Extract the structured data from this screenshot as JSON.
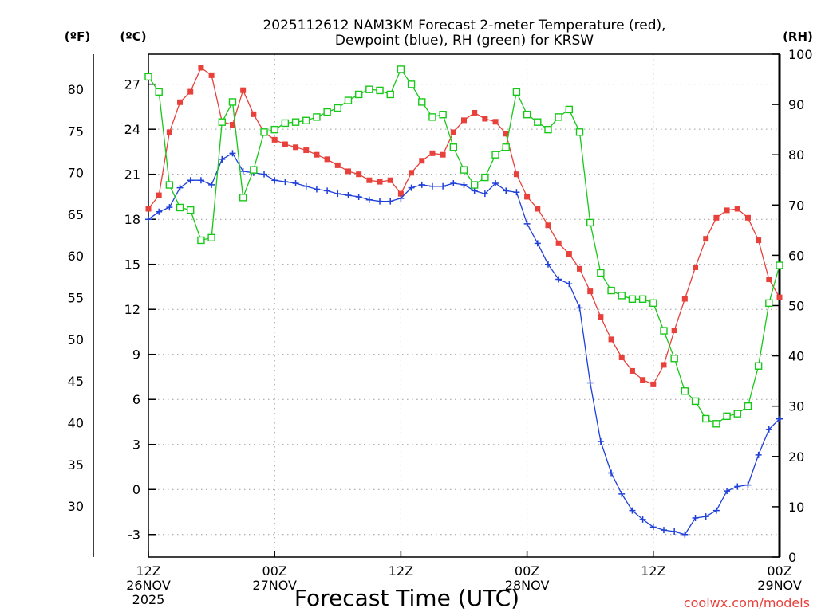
{
  "chart_data": {
    "type": "line",
    "title_line1": "2025112612 NAM3KM Forecast 2-meter Temperature (red),",
    "title_line2": "Dewpoint (blue), RH (green) for KRSW",
    "xlabel": "Forecast Time (UTC)",
    "credit": "coolwx.com/models",
    "unit_labels": {
      "fahrenheit": "(ºF)",
      "celsius": "(ºC)",
      "rh": "(RH)"
    },
    "x_range_hours": [
      0,
      60
    ],
    "celsius_range": [
      -4.5,
      29.0
    ],
    "rh_range": [
      0,
      100
    ],
    "celsius_ticks": [
      "27",
      "24",
      "21",
      "18",
      "15",
      "12",
      "9",
      "6",
      "3",
      "0",
      "-3"
    ],
    "celsius_tick_values": [
      27,
      24,
      21,
      18,
      15,
      12,
      9,
      6,
      3,
      0,
      -3
    ],
    "fahrenheit_ticks": [
      "80",
      "75",
      "70",
      "65",
      "60",
      "55",
      "50",
      "45",
      "40",
      "35",
      "30"
    ],
    "fahrenheit_tick_values": [
      80,
      75,
      70,
      65,
      60,
      55,
      50,
      45,
      40,
      35,
      30
    ],
    "rh_ticks": [
      "100",
      "90",
      "80",
      "70",
      "60",
      "50",
      "40",
      "30",
      "20",
      "10",
      "0"
    ],
    "rh_tick_values": [
      100,
      90,
      80,
      70,
      60,
      50,
      40,
      30,
      20,
      10,
      0
    ],
    "x_ticks": [
      {
        "hour": 0,
        "lines": [
          "12Z",
          "26NOV",
          "2025"
        ]
      },
      {
        "hour": 12,
        "lines": [
          "00Z",
          "27NOV"
        ]
      },
      {
        "hour": 24,
        "lines": [
          "12Z"
        ]
      },
      {
        "hour": 36,
        "lines": [
          "00Z",
          "28NOV"
        ]
      },
      {
        "hour": 48,
        "lines": [
          "12Z"
        ]
      },
      {
        "hour": 60,
        "lines": [
          "00Z",
          "29NOV"
        ]
      }
    ],
    "series": [
      {
        "name": "2-meter Temperature",
        "color": "#e8403a",
        "units": "C",
        "marker": "filled-square",
        "x": [
          0,
          1,
          2,
          3,
          4,
          5,
          6,
          7,
          8,
          9,
          10,
          11,
          12,
          13,
          14,
          15,
          16,
          17,
          18,
          19,
          20,
          21,
          22,
          23,
          24,
          25,
          26,
          27,
          28,
          29,
          30,
          31,
          32,
          33,
          34,
          35,
          36,
          37,
          38,
          39,
          40,
          41,
          42,
          43,
          44,
          45,
          46,
          47,
          48,
          49,
          50,
          51,
          52,
          53,
          54,
          55,
          56,
          57,
          58,
          59,
          60
        ],
        "values": [
          18.7,
          19.6,
          23.8,
          25.8,
          26.5,
          28.1,
          27.6,
          24.5,
          24.3,
          26.6,
          25.0,
          23.8,
          23.3,
          23.0,
          22.8,
          22.6,
          22.3,
          22.0,
          21.6,
          21.2,
          21.0,
          20.6,
          20.5,
          20.6,
          19.7,
          21.1,
          21.9,
          22.4,
          22.3,
          23.8,
          24.6,
          25.1,
          24.7,
          24.5,
          23.7,
          21.0,
          19.5,
          18.7,
          17.6,
          16.4,
          15.7,
          14.7,
          13.2,
          11.5,
          10.0,
          8.8,
          7.9,
          7.3,
          7.0,
          8.3,
          10.6,
          12.7,
          14.8,
          16.7,
          18.1,
          18.6,
          18.7,
          18.1,
          16.6,
          14.0,
          12.8
        ]
      },
      {
        "name": "Dewpoint",
        "color": "#1e3fd8",
        "units": "C",
        "marker": "plus",
        "x": [
          0,
          1,
          2,
          3,
          4,
          5,
          6,
          7,
          8,
          9,
          10,
          11,
          12,
          13,
          14,
          15,
          16,
          17,
          18,
          19,
          20,
          21,
          22,
          23,
          24,
          25,
          26,
          27,
          28,
          29,
          30,
          31,
          32,
          33,
          34,
          35,
          36,
          37,
          38,
          39,
          40,
          41,
          42,
          43,
          44,
          45,
          46,
          47,
          48,
          49,
          50,
          51,
          52,
          53,
          54,
          55,
          56,
          57,
          58,
          59,
          60
        ],
        "values": [
          18.0,
          18.5,
          18.8,
          20.1,
          20.6,
          20.6,
          20.3,
          22.0,
          22.4,
          21.2,
          21.1,
          21.0,
          20.6,
          20.5,
          20.4,
          20.2,
          20.0,
          19.9,
          19.7,
          19.6,
          19.5,
          19.3,
          19.2,
          19.2,
          19.4,
          20.1,
          20.3,
          20.2,
          20.2,
          20.4,
          20.3,
          19.9,
          19.7,
          20.4,
          19.9,
          19.8,
          17.7,
          16.4,
          15.0,
          14.0,
          13.7,
          12.1,
          7.1,
          3.2,
          1.1,
          -0.3,
          -1.4,
          -2.0,
          -2.5,
          -2.7,
          -2.8,
          -3.0,
          -1.9,
          -1.8,
          -1.4,
          -0.1,
          0.2,
          0.3,
          2.3,
          4.0,
          4.7
        ]
      },
      {
        "name": "RH",
        "color": "#18c818",
        "units": "%",
        "marker": "open-square",
        "x": [
          0,
          1,
          2,
          3,
          4,
          5,
          6,
          7,
          8,
          9,
          10,
          11,
          12,
          13,
          14,
          15,
          16,
          17,
          18,
          19,
          20,
          21,
          22,
          23,
          24,
          25,
          26,
          27,
          28,
          29,
          30,
          31,
          32,
          33,
          34,
          35,
          36,
          37,
          38,
          39,
          40,
          41,
          42,
          43,
          44,
          45,
          46,
          47,
          48,
          49,
          50,
          51,
          52,
          53,
          54,
          55,
          56,
          57,
          58,
          59,
          60
        ],
        "values": [
          95.5,
          92.5,
          74.0,
          69.5,
          69.0,
          63.0,
          63.5,
          86.5,
          90.5,
          71.5,
          77.0,
          84.5,
          85.0,
          86.3,
          86.5,
          86.8,
          87.5,
          88.5,
          89.3,
          90.8,
          92.0,
          93.0,
          92.8,
          92.0,
          97.0,
          94.0,
          90.5,
          87.5,
          88.0,
          81.5,
          77.0,
          74.0,
          75.5,
          80.0,
          81.5,
          92.5,
          88.0,
          86.5,
          85.0,
          87.5,
          89.0,
          84.5,
          66.5,
          56.5,
          53.0,
          52.0,
          51.3,
          51.3,
          50.5,
          45.0,
          39.5,
          33.0,
          31.0,
          27.5,
          26.5,
          28.0,
          28.5,
          30.0,
          38.0,
          50.5,
          58.0
        ]
      }
    ]
  }
}
